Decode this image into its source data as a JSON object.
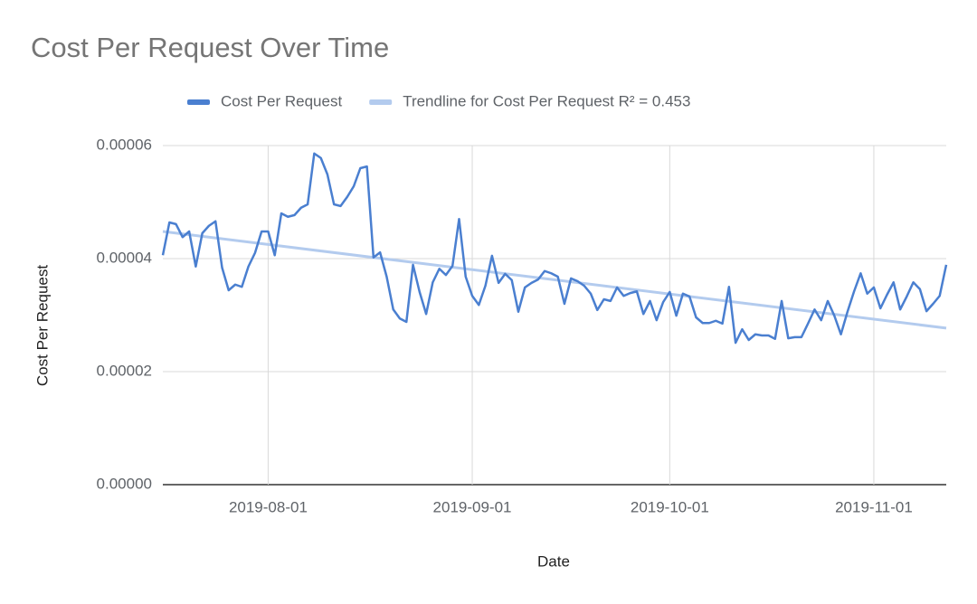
{
  "chart_data": {
    "type": "line",
    "title": "Cost Per Request Over Time",
    "x_label": "Date",
    "y_label": "Cost Per Request",
    "x": [
      "2019-07-16",
      "2019-07-17",
      "2019-07-18",
      "2019-07-19",
      "2019-07-20",
      "2019-07-21",
      "2019-07-22",
      "2019-07-23",
      "2019-07-24",
      "2019-07-25",
      "2019-07-26",
      "2019-07-27",
      "2019-07-28",
      "2019-07-29",
      "2019-07-30",
      "2019-07-31",
      "2019-08-01",
      "2019-08-02",
      "2019-08-03",
      "2019-08-04",
      "2019-08-05",
      "2019-08-06",
      "2019-08-07",
      "2019-08-08",
      "2019-08-09",
      "2019-08-10",
      "2019-08-11",
      "2019-08-12",
      "2019-08-13",
      "2019-08-14",
      "2019-08-15",
      "2019-08-16",
      "2019-08-17",
      "2019-08-18",
      "2019-08-19",
      "2019-08-20",
      "2019-08-21",
      "2019-08-22",
      "2019-08-23",
      "2019-08-24",
      "2019-08-25",
      "2019-08-26",
      "2019-08-27",
      "2019-08-28",
      "2019-08-29",
      "2019-08-30",
      "2019-08-31",
      "2019-09-01",
      "2019-09-02",
      "2019-09-03",
      "2019-09-04",
      "2019-09-05",
      "2019-09-06",
      "2019-09-07",
      "2019-09-08",
      "2019-09-09",
      "2019-09-10",
      "2019-09-11",
      "2019-09-12",
      "2019-09-13",
      "2019-09-14",
      "2019-09-15",
      "2019-09-16",
      "2019-09-17",
      "2019-09-18",
      "2019-09-19",
      "2019-09-20",
      "2019-09-21",
      "2019-09-22",
      "2019-09-23",
      "2019-09-24",
      "2019-09-25",
      "2019-09-26",
      "2019-09-27",
      "2019-09-28",
      "2019-09-29",
      "2019-09-30",
      "2019-10-01",
      "2019-10-02",
      "2019-10-03",
      "2019-10-04",
      "2019-10-05",
      "2019-10-06",
      "2019-10-07",
      "2019-10-08",
      "2019-10-09",
      "2019-10-10",
      "2019-10-11",
      "2019-10-12",
      "2019-10-13",
      "2019-10-14",
      "2019-10-15",
      "2019-10-16",
      "2019-10-17",
      "2019-10-18",
      "2019-10-19",
      "2019-10-20",
      "2019-10-21",
      "2019-10-22",
      "2019-10-23",
      "2019-10-24",
      "2019-10-25",
      "2019-10-26",
      "2019-10-27",
      "2019-10-28",
      "2019-10-29",
      "2019-10-30",
      "2019-10-31",
      "2019-11-01",
      "2019-11-02",
      "2019-11-03",
      "2019-11-04",
      "2019-11-05",
      "2019-11-06",
      "2019-11-07",
      "2019-11-08",
      "2019-11-09",
      "2019-11-10",
      "2019-11-11",
      "2019-11-12"
    ],
    "series": [
      {
        "name": "Cost Per Request",
        "color": "#4a7fd0",
        "values": [
          4.06e-05,
          4.64e-05,
          4.61e-05,
          4.38e-05,
          4.48e-05,
          3.86e-05,
          4.45e-05,
          4.58e-05,
          4.66e-05,
          3.84e-05,
          3.44e-05,
          3.54e-05,
          3.5e-05,
          3.86e-05,
          4.1e-05,
          4.48e-05,
          4.48e-05,
          4.06e-05,
          4.8e-05,
          4.74e-05,
          4.77e-05,
          4.9e-05,
          4.96e-05,
          5.86e-05,
          5.78e-05,
          5.49e-05,
          4.96e-05,
          4.93e-05,
          5.09e-05,
          5.28e-05,
          5.6e-05,
          5.63e-05,
          4.02e-05,
          4.11e-05,
          3.68e-05,
          3.1e-05,
          2.94e-05,
          2.88e-05,
          3.89e-05,
          3.41e-05,
          3.02e-05,
          3.58e-05,
          3.82e-05,
          3.71e-05,
          3.87e-05,
          4.7e-05,
          3.68e-05,
          3.34e-05,
          3.18e-05,
          3.52e-05,
          4.05e-05,
          3.57e-05,
          3.73e-05,
          3.62e-05,
          3.06e-05,
          3.49e-05,
          3.57e-05,
          3.63e-05,
          3.78e-05,
          3.74e-05,
          3.68e-05,
          3.2e-05,
          3.65e-05,
          3.6e-05,
          3.52e-05,
          3.38e-05,
          3.09e-05,
          3.28e-05,
          3.25e-05,
          3.49e-05,
          3.34e-05,
          3.39e-05,
          3.42e-05,
          3.02e-05,
          3.25e-05,
          2.91e-05,
          3.23e-05,
          3.41e-05,
          2.99e-05,
          3.38e-05,
          3.33e-05,
          2.96e-05,
          2.86e-05,
          2.86e-05,
          2.9e-05,
          2.85e-05,
          3.5e-05,
          2.51e-05,
          2.75e-05,
          2.56e-05,
          2.66e-05,
          2.64e-05,
          2.64e-05,
          2.58e-05,
          3.25e-05,
          2.59e-05,
          2.61e-05,
          2.61e-05,
          2.85e-05,
          3.1e-05,
          2.91e-05,
          3.25e-05,
          2.99e-05,
          2.66e-05,
          3.06e-05,
          3.42e-05,
          3.74e-05,
          3.38e-05,
          3.49e-05,
          3.12e-05,
          3.36e-05,
          3.58e-05,
          3.1e-05,
          3.33e-05,
          3.58e-05,
          3.46e-05,
          3.07e-05,
          3.2e-05,
          3.34e-05,
          3.89e-05
        ]
      }
    ],
    "trendline": {
      "name": "Trendline for Cost Per Request R² = 0.453",
      "color": "#b3cbee",
      "x": [
        "2019-07-16",
        "2019-11-12"
      ],
      "values": [
        4.48e-05,
        2.77e-05
      ]
    },
    "xlim": [
      "2019-07-16",
      "2019-11-12"
    ],
    "xticks": [
      "2019-08-01",
      "2019-09-01",
      "2019-10-01",
      "2019-11-01"
    ],
    "ylim": [
      0,
      6e-05
    ],
    "yticks": [
      {
        "value": 0,
        "label": "0.00000"
      },
      2e-05,
      4e-05,
      6e-05
    ],
    "grid": true,
    "legend": "top"
  }
}
